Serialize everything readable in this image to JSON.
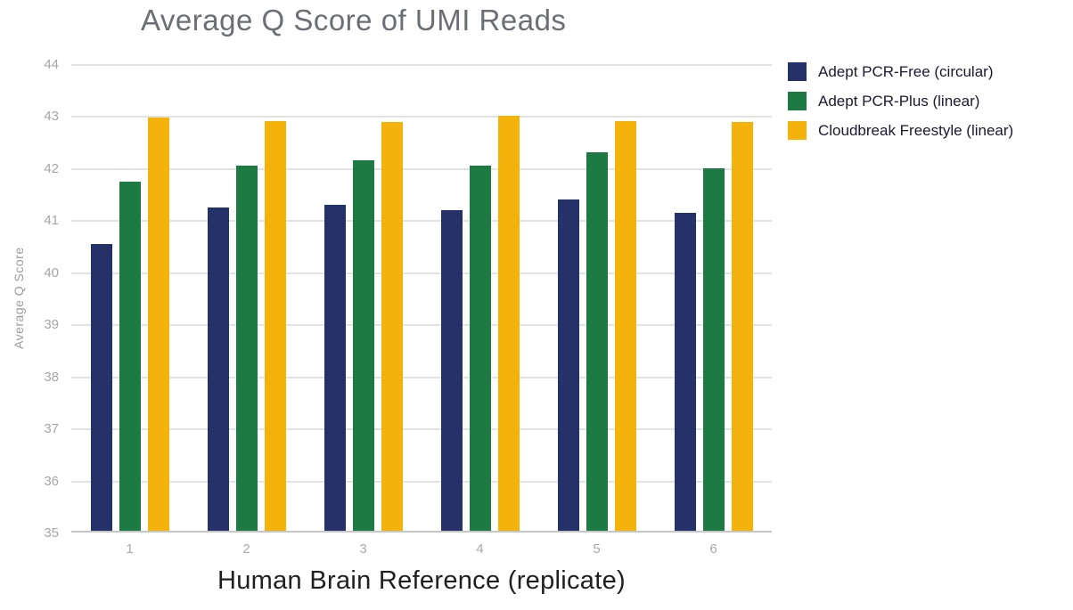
{
  "chart_data": {
    "type": "bar",
    "title": "Average Q Score of UMI Reads",
    "xlabel": "Human Brain Reference (replicate)",
    "ylabel": "Average Q Score",
    "ylim": [
      35,
      44
    ],
    "ytick_step": 1,
    "grid": true,
    "legend_position": "top-right",
    "categories": [
      "1",
      "2",
      "3",
      "4",
      "5",
      "6"
    ],
    "series": [
      {
        "name": "Adept PCR-Free (circular)",
        "color": "#253269",
        "values": [
          40.55,
          41.25,
          41.3,
          41.2,
          41.4,
          41.15
        ]
      },
      {
        "name": "Adept PCR-Plus (linear)",
        "color": "#1d7a42",
        "values": [
          41.75,
          42.05,
          42.15,
          42.05,
          42.3,
          42.0
        ]
      },
      {
        "name": "Cloudbreak Freestyle (linear)",
        "color": "#f4b30b",
        "values": [
          42.98,
          42.9,
          42.88,
          43.0,
          42.9,
          42.88
        ]
      }
    ]
  },
  "colors": {
    "title_text": "#6b6f75",
    "axis_tick_text": "#a6a6a6",
    "x_axis_title_text": "#1f1f1f",
    "legend_text": "#191932",
    "gridline": "#e3e3e3",
    "baseline": "#c6c6c6",
    "background": "#ffffff"
  }
}
